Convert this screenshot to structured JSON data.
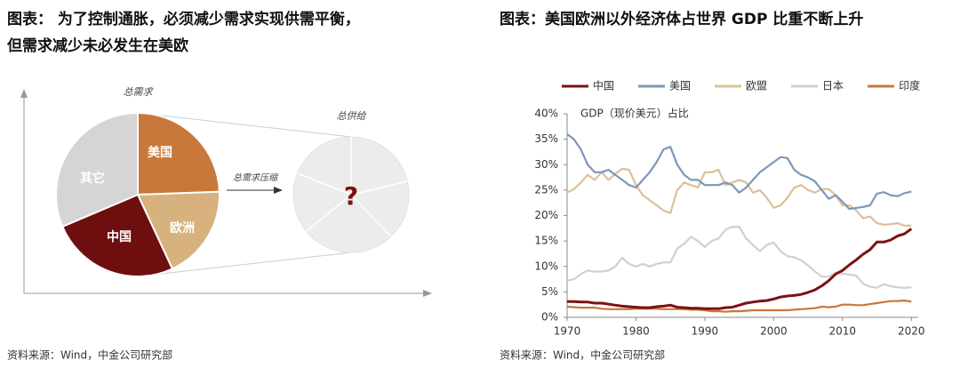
{
  "left": {
    "title": [
      "图表： 为了控制通胀，必须减少需求实现供需平衡，",
      "但需求减少未必发生在美欧"
    ],
    "demand_label": "总需求",
    "supply_label": "总供给",
    "arrow_label": "总需求压缩",
    "question": "?",
    "slices": [
      "美国",
      "欧洲",
      "中国",
      "其它"
    ],
    "source": "资料来源：Wind，中金公司研究部"
  },
  "chart_data": {
    "type": "line",
    "title": "图表：美国欧洲以外经济体占世界 GDP 比重不断上升",
    "subtitle": "GDP（现价美元）占比",
    "source": "资料来源：Wind，中金公司研究部",
    "legend": "top",
    "x": [
      1970,
      1971,
      1972,
      1973,
      1974,
      1975,
      1976,
      1977,
      1978,
      1979,
      1980,
      1981,
      1982,
      1983,
      1984,
      1985,
      1986,
      1987,
      1988,
      1989,
      1990,
      1991,
      1992,
      1993,
      1994,
      1995,
      1996,
      1997,
      1998,
      1999,
      2000,
      2001,
      2002,
      2003,
      2004,
      2005,
      2006,
      2007,
      2008,
      2009,
      2010,
      2011,
      2012,
      2013,
      2014,
      2015,
      2016,
      2017,
      2018,
      2019,
      2020
    ],
    "xlim": [
      1970,
      2021
    ],
    "xticks": [
      1970,
      1980,
      1990,
      2000,
      2010,
      2020
    ],
    "ylim": [
      0,
      40
    ],
    "yticks": [
      {
        "value": 0,
        "label": "0%"
      },
      {
        "value": 5,
        "label": "5%"
      },
      {
        "value": 10,
        "label": "10%"
      },
      {
        "value": 15,
        "label": "15%"
      },
      {
        "value": 20,
        "label": "20%"
      },
      {
        "value": 25,
        "label": "25%"
      },
      {
        "value": 30,
        "label": "30%"
      },
      {
        "value": 35,
        "label": "35%"
      },
      {
        "value": 40,
        "label": "40%"
      }
    ],
    "series": [
      {
        "name": "中国",
        "color": "#7b1113",
        "values": [
          3.1,
          3.1,
          3.0,
          3.0,
          2.8,
          2.8,
          2.6,
          2.4,
          2.2,
          2.1,
          2.0,
          1.9,
          1.9,
          2.1,
          2.2,
          2.4,
          2.0,
          1.9,
          1.8,
          1.8,
          1.7,
          1.7,
          1.7,
          1.9,
          2.0,
          2.4,
          2.8,
          3.0,
          3.2,
          3.3,
          3.6,
          4.0,
          4.2,
          4.3,
          4.5,
          4.9,
          5.4,
          6.2,
          7.2,
          8.5,
          9.2,
          10.3,
          11.3,
          12.4,
          13.3,
          14.8,
          14.8,
          15.2,
          16.0,
          16.4,
          17.4
        ]
      },
      {
        "name": "美国",
        "color": "#7d97b9",
        "values": [
          36,
          35,
          33,
          30,
          28.5,
          28.5,
          29,
          28,
          27,
          26,
          25.5,
          27,
          28.5,
          30.5,
          33,
          33.5,
          30,
          28,
          27,
          27,
          26,
          26,
          26,
          26.5,
          26,
          24.5,
          25.5,
          27,
          28.5,
          29.5,
          30.5,
          31.5,
          31.3,
          29,
          28,
          27.5,
          26.7,
          25,
          23.3,
          24,
          22.7,
          21.3,
          21.5,
          21.7,
          22,
          24.3,
          24.6,
          24,
          23.8,
          24.4,
          24.7
        ]
      },
      {
        "name": "欧盟",
        "color": "#dcc096",
        "values": [
          24.5,
          25.2,
          26.5,
          28,
          27,
          28.5,
          27,
          28.2,
          29.2,
          29,
          26,
          24,
          23,
          22,
          21,
          20.5,
          25,
          26.5,
          26,
          25.5,
          28.5,
          28.5,
          29,
          26,
          26.5,
          27,
          26.5,
          24.5,
          25,
          23.5,
          21.5,
          22,
          23.5,
          25.5,
          26,
          25,
          24.5,
          25.2,
          25.2,
          24,
          22,
          22,
          21,
          19.5,
          19.8,
          18.5,
          18.2,
          18.3,
          18.5,
          18,
          18
        ]
      },
      {
        "name": "日本",
        "color": "#d0d0d0",
        "values": [
          7.2,
          7.5,
          8.5,
          9.2,
          9,
          9,
          9.2,
          10,
          11.7,
          10.5,
          10,
          10.5,
          10,
          10.5,
          10.8,
          10.8,
          13.5,
          14.5,
          15.8,
          15,
          13.8,
          15,
          15.5,
          17.2,
          17.8,
          17.8,
          15.5,
          14.2,
          13,
          14.2,
          14.7,
          13,
          12,
          11.8,
          11.2,
          10.2,
          9,
          8,
          8,
          8.8,
          8.6,
          8.4,
          8.2,
          6.6,
          6,
          5.8,
          6.5,
          6.1,
          5.9,
          5.8,
          5.9
        ]
      },
      {
        "name": "印度",
        "color": "#c9773a",
        "values": [
          2.1,
          2.0,
          1.9,
          1.9,
          1.9,
          1.7,
          1.6,
          1.6,
          1.6,
          1.6,
          1.7,
          1.7,
          1.7,
          1.7,
          1.6,
          1.6,
          1.6,
          1.6,
          1.5,
          1.5,
          1.4,
          1.2,
          1.2,
          1.1,
          1.2,
          1.2,
          1.3,
          1.4,
          1.4,
          1.4,
          1.4,
          1.4,
          1.4,
          1.5,
          1.6,
          1.7,
          1.8,
          2.1,
          2.0,
          2.1,
          2.5,
          2.5,
          2.4,
          2.4,
          2.6,
          2.8,
          3.0,
          3.2,
          3.2,
          3.3,
          3.1
        ]
      }
    ]
  }
}
